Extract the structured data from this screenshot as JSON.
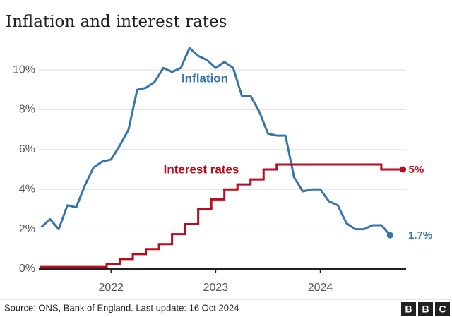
{
  "chart_data": {
    "type": "line",
    "title": "Inflation and interest rates",
    "xlim": [
      2021.33,
      2024.82
    ],
    "xticks": [
      2022,
      2023,
      2024
    ],
    "ylim": [
      0,
      11.2
    ],
    "yticks": [
      {
        "value": 0,
        "label": "0%"
      },
      {
        "value": 2,
        "label": "2%"
      },
      {
        "value": 4,
        "label": "4%"
      },
      {
        "value": 6,
        "label": "6%"
      },
      {
        "value": 8,
        "label": "8%"
      },
      {
        "value": 10,
        "label": "10%"
      }
    ],
    "grid": true,
    "series": [
      {
        "name": "Inflation",
        "color": "#3574ad",
        "step": false,
        "x": [
          2021.333,
          2021.417,
          2021.5,
          2021.583,
          2021.667,
          2021.75,
          2021.833,
          2021.917,
          2022,
          2022.083,
          2022.167,
          2022.25,
          2022.333,
          2022.417,
          2022.5,
          2022.583,
          2022.667,
          2022.75,
          2022.833,
          2022.917,
          2023,
          2023.083,
          2023.167,
          2023.25,
          2023.333,
          2023.417,
          2023.5,
          2023.583,
          2023.667,
          2023.75,
          2023.833,
          2023.917,
          2024,
          2024.083,
          2024.167,
          2024.25,
          2024.333,
          2024.417,
          2024.5,
          2024.583,
          2024.667
        ],
        "values": [
          2.1,
          2.5,
          2.0,
          3.2,
          3.1,
          4.2,
          5.1,
          5.4,
          5.5,
          6.2,
          7.0,
          9.0,
          9.1,
          9.4,
          10.1,
          9.9,
          10.1,
          11.1,
          10.7,
          10.5,
          10.1,
          10.4,
          10.1,
          8.7,
          8.7,
          7.9,
          6.8,
          6.7,
          6.7,
          4.6,
          3.9,
          4.0,
          4.0,
          3.4,
          3.2,
          2.3,
          2.0,
          2.0,
          2.2,
          2.2,
          1.7
        ],
        "value_labels": [
          null,
          null,
          null,
          null,
          null,
          null,
          null,
          null,
          null,
          null,
          null,
          null,
          null,
          null,
          null,
          null,
          null,
          null,
          null,
          null,
          null,
          null,
          null,
          null,
          null,
          null,
          null,
          null,
          null,
          null,
          null,
          null,
          null,
          null,
          null,
          null,
          null,
          null,
          null,
          null,
          "1.7%"
        ]
      },
      {
        "name": "Interest rates",
        "color": "#b80c1f",
        "step": true,
        "x": [
          2021.333,
          2021.958,
          2022.083,
          2022.208,
          2022.333,
          2022.458,
          2022.583,
          2022.708,
          2022.833,
          2022.958,
          2023.083,
          2023.208,
          2023.333,
          2023.458,
          2023.583,
          2024.583,
          2024.79
        ],
        "values": [
          0.1,
          0.25,
          0.5,
          0.75,
          1,
          1.25,
          1.75,
          2.25,
          3,
          3.5,
          4,
          4.25,
          4.5,
          5,
          5.25,
          5,
          5
        ],
        "value_labels": [
          null,
          null,
          null,
          null,
          null,
          null,
          null,
          null,
          null,
          null,
          null,
          null,
          null,
          null,
          null,
          null,
          "5%"
        ]
      }
    ],
    "source": "Source: ONS, Bank of England. Last update: 16 Oct 2024",
    "logo": [
      "B",
      "B",
      "C"
    ]
  }
}
